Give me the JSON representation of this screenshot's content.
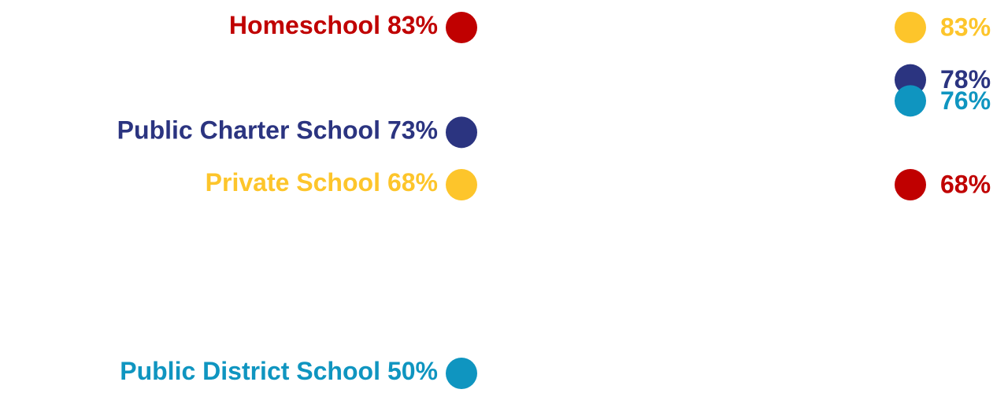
{
  "chart_data": {
    "type": "slope",
    "series": [
      {
        "name": "Homeschool",
        "color": "#c00000",
        "values": [
          83,
          68
        ],
        "value_labels": [
          "83%",
          "68%"
        ]
      },
      {
        "name": "Public Charter School",
        "color": "#2b3480",
        "values": [
          73,
          78
        ],
        "value_labels": [
          "73%",
          "78%"
        ]
      },
      {
        "name": "Private School",
        "color": "#fdc52b",
        "values": [
          68,
          83
        ],
        "value_labels": [
          "68%",
          "83%"
        ]
      },
      {
        "name": "Public District School",
        "color": "#0f95c0",
        "values": [
          50,
          76
        ],
        "value_labels": [
          "50%",
          "76%"
        ]
      }
    ]
  }
}
